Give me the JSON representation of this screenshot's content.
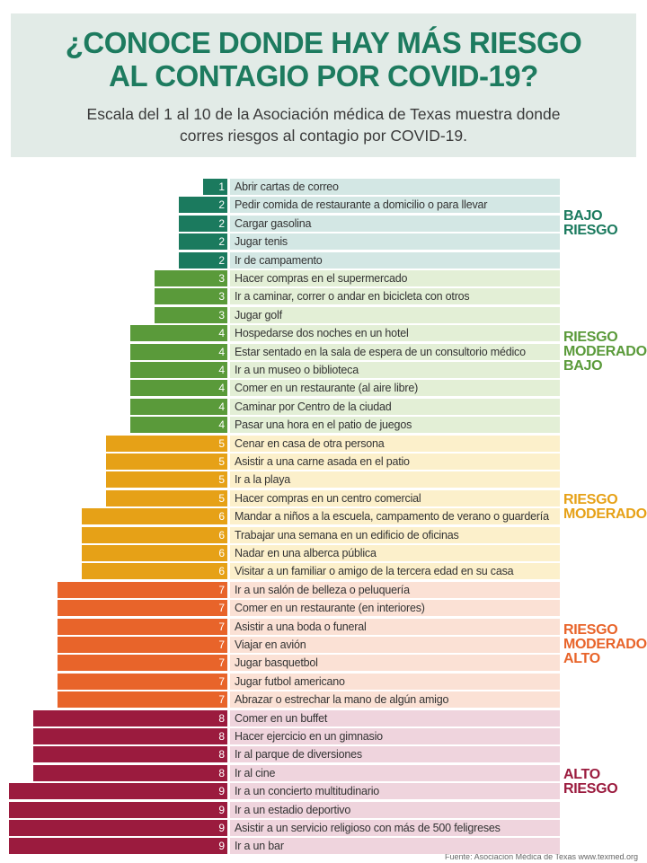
{
  "chart_data": {
    "type": "bar",
    "orientation": "horizontal",
    "title": "¿CONOCE DONDE HAY MÁS RIESGO\nAL CONTAGIO POR COVID-19?",
    "subtitle": "Escala del 1 al 10 de la Asociación médica de Texas muestra donde\ncorres riesgos al contagio por COVID-19.",
    "source": "Fuente: Asociacion Médica de Texas  www.texmed.org",
    "series": [
      {
        "name": "BAJO RIESGO",
        "color": "#1b7a5e",
        "background": "#d3e7e4",
        "categories": [
          "Abrir cartas de correo",
          "Pedir comida de restaurante a domicilio o para llevar",
          "Cargar gasolina",
          "Jugar tenis",
          "Ir de campamento"
        ],
        "values": [
          1,
          2,
          2,
          2,
          2
        ]
      },
      {
        "name": "RIESGO MODERADO BAJO",
        "color": "#5a9a3a",
        "background": "#e3efd6",
        "categories": [
          "Hacer compras en el supermercado",
          "Ir a caminar, correr o andar en bicicleta con otros",
          "Jugar golf",
          "Hospedarse dos noches en un hotel",
          "Estar sentado en la sala de espera de un consultorio médico",
          "Ir a un museo o biblioteca",
          "Comer en un restaurante (al aire libre)",
          "Caminar por Centro de la ciudad",
          "Pasar una hora en el patio de juegos"
        ],
        "values": [
          3,
          3,
          3,
          4,
          4,
          4,
          4,
          4,
          4
        ]
      },
      {
        "name": "RIESGO MODERADO",
        "color": "#e6a117",
        "background": "#fcf0cb",
        "categories": [
          "Cenar en casa de otra persona",
          "Asistir a una carne asada en el patio",
          "Ir a la playa",
          "Hacer compras en un centro comercial",
          "Mandar a niños a la escuela, campamento de verano o guardería",
          "Trabajar una semana en un edificio de oficinas",
          "Nadar en una alberca pública",
          "Visitar a un familiar o amigo de la tercera edad en su casa"
        ],
        "values": [
          5,
          5,
          5,
          5,
          6,
          6,
          6,
          6
        ]
      },
      {
        "name": "RIESGO MODERADO ALTO",
        "color": "#e8642a",
        "background": "#fbe1d5",
        "categories": [
          "Ir a un salón de belleza o peluquería",
          "Comer en un restaurante (en interiores)",
          "Asistir a una boda o funeral",
          "Viajar en avión",
          "Jugar basquetbol",
          "Jugar futbol americano",
          "Abrazar o estrechar la mano de algún amigo"
        ],
        "values": [
          7,
          7,
          7,
          7,
          7,
          7,
          7
        ]
      },
      {
        "name": "ALTO RIESGO",
        "color": "#9b1b3e",
        "background": "#efd4dd",
        "categories": [
          "Comer en un buffet",
          "Hacer ejercicio en un gimnasio",
          "Ir al parque de diversiones",
          "Ir al cine",
          "Ir a un concierto multitudinario",
          "Ir a un estadio deportivo",
          "Asistir a un servicio religioso con más de 500 feligreses",
          "Ir a un bar"
        ],
        "values": [
          8,
          8,
          8,
          8,
          9,
          9,
          9,
          9
        ]
      }
    ]
  }
}
